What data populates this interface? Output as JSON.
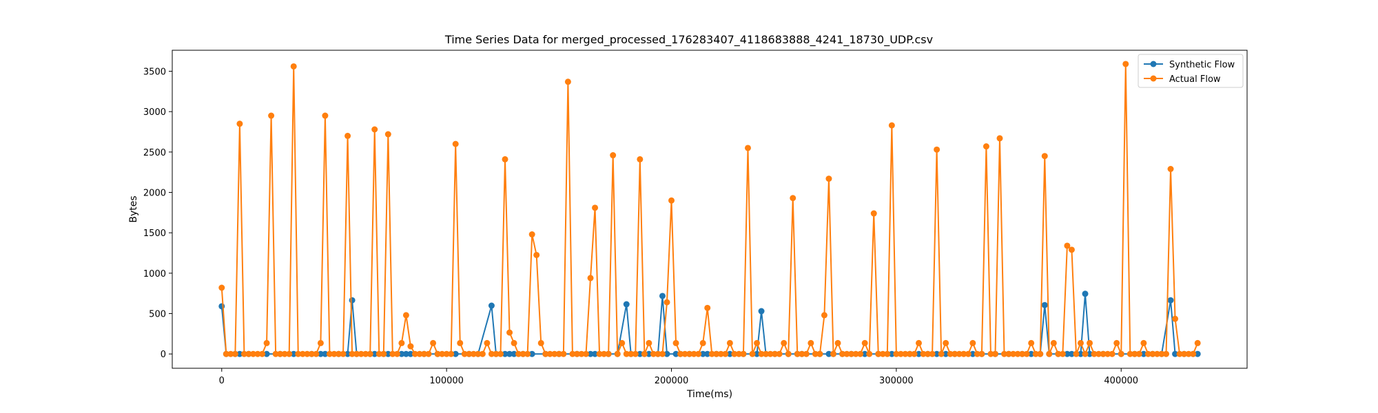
{
  "chart_data": {
    "type": "line",
    "title": "Time Series Data for merged_processed_176283407_4118683888_4241_18730_UDP.csv",
    "xlabel": "Time(ms)",
    "ylabel": "Bytes",
    "xlim": [
      -22000,
      456000
    ],
    "ylim": [
      -177,
      3760
    ],
    "xticks": [
      0,
      100000,
      200000,
      300000,
      400000
    ],
    "yticks": [
      0,
      500,
      1000,
      1500,
      2000,
      2500,
      3000,
      3500
    ],
    "grid": false,
    "legend_position": "top-right",
    "series": [
      {
        "name": "Synthetic Flow",
        "color": "#1f77b4",
        "marker": "circle",
        "points": [
          [
            0,
            590
          ],
          [
            2000,
            0
          ],
          [
            6000,
            0
          ],
          [
            8000,
            0
          ],
          [
            12000,
            0
          ],
          [
            20000,
            0
          ],
          [
            26000,
            0
          ],
          [
            32000,
            0
          ],
          [
            40000,
            0
          ],
          [
            44000,
            0
          ],
          [
            46000,
            0
          ],
          [
            52000,
            0
          ],
          [
            56000,
            0
          ],
          [
            58000,
            665
          ],
          [
            60000,
            0
          ],
          [
            66000,
            0
          ],
          [
            68000,
            0
          ],
          [
            72000,
            0
          ],
          [
            74000,
            0
          ],
          [
            80000,
            0
          ],
          [
            82000,
            0
          ],
          [
            84000,
            0
          ],
          [
            90000,
            0
          ],
          [
            96000,
            0
          ],
          [
            104000,
            0
          ],
          [
            110000,
            0
          ],
          [
            114000,
            0
          ],
          [
            120000,
            598
          ],
          [
            122000,
            0
          ],
          [
            126000,
            0
          ],
          [
            128000,
            0
          ],
          [
            130000,
            0
          ],
          [
            134000,
            0
          ],
          [
            138000,
            0
          ],
          [
            144000,
            0
          ],
          [
            150000,
            0
          ],
          [
            158000,
            0
          ],
          [
            164000,
            0
          ],
          [
            166000,
            0
          ],
          [
            172000,
            0
          ],
          [
            176000,
            0
          ],
          [
            180000,
            615
          ],
          [
            182000,
            0
          ],
          [
            186000,
            0
          ],
          [
            188000,
            0
          ],
          [
            190000,
            0
          ],
          [
            194000,
            0
          ],
          [
            196000,
            718
          ],
          [
            198000,
            0
          ],
          [
            202000,
            0
          ],
          [
            204000,
            0
          ],
          [
            208000,
            0
          ],
          [
            214000,
            0
          ],
          [
            216000,
            0
          ],
          [
            220000,
            0
          ],
          [
            226000,
            0
          ],
          [
            232000,
            0
          ],
          [
            238000,
            0
          ],
          [
            240000,
            530
          ],
          [
            242000,
            0
          ],
          [
            246000,
            0
          ],
          [
            252000,
            0
          ],
          [
            256000,
            0
          ],
          [
            258000,
            0
          ],
          [
            266000,
            0
          ],
          [
            270000,
            0
          ],
          [
            272000,
            0
          ],
          [
            276000,
            0
          ],
          [
            280000,
            0
          ],
          [
            286000,
            0
          ],
          [
            292000,
            0
          ],
          [
            298000,
            0
          ],
          [
            306000,
            0
          ],
          [
            310000,
            0
          ],
          [
            314000,
            0
          ],
          [
            318000,
            0
          ],
          [
            322000,
            0
          ],
          [
            326000,
            0
          ],
          [
            334000,
            0
          ],
          [
            338000,
            0
          ],
          [
            344000,
            0
          ],
          [
            350000,
            0
          ],
          [
            356000,
            0
          ],
          [
            360000,
            0
          ],
          [
            364000,
            0
          ],
          [
            366000,
            605
          ],
          [
            368000,
            0
          ],
          [
            372000,
            0
          ],
          [
            376000,
            0
          ],
          [
            378000,
            0
          ],
          [
            382000,
            0
          ],
          [
            384000,
            745
          ],
          [
            386000,
            0
          ],
          [
            392000,
            0
          ],
          [
            400000,
            0
          ],
          [
            406000,
            0
          ],
          [
            410000,
            0
          ],
          [
            414000,
            0
          ],
          [
            418000,
            0
          ],
          [
            422000,
            665
          ],
          [
            424000,
            0
          ],
          [
            428000,
            0
          ],
          [
            432000,
            0
          ],
          [
            434000,
            0
          ]
        ]
      },
      {
        "name": "Actual Flow",
        "color": "#ff7f0e",
        "marker": "circle",
        "points": [
          [
            0,
            820
          ],
          [
            2000,
            0
          ],
          [
            4000,
            0
          ],
          [
            6000,
            0
          ],
          [
            8000,
            2850
          ],
          [
            10000,
            0
          ],
          [
            12000,
            0
          ],
          [
            14000,
            0
          ],
          [
            16000,
            0
          ],
          [
            18000,
            0
          ],
          [
            20000,
            135
          ],
          [
            22000,
            2950
          ],
          [
            24000,
            0
          ],
          [
            26000,
            0
          ],
          [
            28000,
            0
          ],
          [
            30000,
            0
          ],
          [
            32000,
            3560
          ],
          [
            34000,
            0
          ],
          [
            36000,
            0
          ],
          [
            38000,
            0
          ],
          [
            40000,
            0
          ],
          [
            42000,
            0
          ],
          [
            44000,
            135
          ],
          [
            46000,
            2950
          ],
          [
            48000,
            0
          ],
          [
            50000,
            0
          ],
          [
            52000,
            0
          ],
          [
            54000,
            0
          ],
          [
            56000,
            2700
          ],
          [
            58000,
            0
          ],
          [
            60000,
            0
          ],
          [
            62000,
            0
          ],
          [
            64000,
            0
          ],
          [
            66000,
            0
          ],
          [
            68000,
            2780
          ],
          [
            70000,
            0
          ],
          [
            72000,
            0
          ],
          [
            74000,
            2720
          ],
          [
            76000,
            0
          ],
          [
            78000,
            0
          ],
          [
            80000,
            135
          ],
          [
            82000,
            480
          ],
          [
            84000,
            95
          ],
          [
            86000,
            0
          ],
          [
            88000,
            0
          ],
          [
            90000,
            0
          ],
          [
            92000,
            0
          ],
          [
            94000,
            135
          ],
          [
            96000,
            0
          ],
          [
            98000,
            0
          ],
          [
            100000,
            0
          ],
          [
            102000,
            0
          ],
          [
            104000,
            2600
          ],
          [
            106000,
            135
          ],
          [
            108000,
            0
          ],
          [
            110000,
            0
          ],
          [
            112000,
            0
          ],
          [
            114000,
            0
          ],
          [
            116000,
            0
          ],
          [
            118000,
            135
          ],
          [
            120000,
            0
          ],
          [
            122000,
            0
          ],
          [
            124000,
            0
          ],
          [
            126000,
            2410
          ],
          [
            128000,
            265
          ],
          [
            130000,
            135
          ],
          [
            132000,
            0
          ],
          [
            134000,
            0
          ],
          [
            136000,
            0
          ],
          [
            138000,
            1480
          ],
          [
            140000,
            1225
          ],
          [
            142000,
            135
          ],
          [
            144000,
            0
          ],
          [
            146000,
            0
          ],
          [
            148000,
            0
          ],
          [
            150000,
            0
          ],
          [
            152000,
            0
          ],
          [
            154000,
            3370
          ],
          [
            156000,
            0
          ],
          [
            158000,
            0
          ],
          [
            160000,
            0
          ],
          [
            162000,
            0
          ],
          [
            164000,
            940
          ],
          [
            166000,
            1810
          ],
          [
            168000,
            0
          ],
          [
            170000,
            0
          ],
          [
            172000,
            0
          ],
          [
            174000,
            2460
          ],
          [
            176000,
            0
          ],
          [
            178000,
            135
          ],
          [
            180000,
            0
          ],
          [
            182000,
            0
          ],
          [
            184000,
            0
          ],
          [
            186000,
            2410
          ],
          [
            188000,
            0
          ],
          [
            190000,
            135
          ],
          [
            192000,
            0
          ],
          [
            194000,
            0
          ],
          [
            196000,
            0
          ],
          [
            198000,
            640
          ],
          [
            200000,
            1900
          ],
          [
            202000,
            135
          ],
          [
            204000,
            0
          ],
          [
            206000,
            0
          ],
          [
            208000,
            0
          ],
          [
            210000,
            0
          ],
          [
            212000,
            0
          ],
          [
            214000,
            135
          ],
          [
            216000,
            570
          ],
          [
            218000,
            0
          ],
          [
            220000,
            0
          ],
          [
            222000,
            0
          ],
          [
            224000,
            0
          ],
          [
            226000,
            135
          ],
          [
            228000,
            0
          ],
          [
            230000,
            0
          ],
          [
            232000,
            0
          ],
          [
            234000,
            2550
          ],
          [
            236000,
            0
          ],
          [
            238000,
            135
          ],
          [
            240000,
            0
          ],
          [
            242000,
            0
          ],
          [
            244000,
            0
          ],
          [
            246000,
            0
          ],
          [
            248000,
            0
          ],
          [
            250000,
            135
          ],
          [
            252000,
            0
          ],
          [
            254000,
            1930
          ],
          [
            256000,
            0
          ],
          [
            258000,
            0
          ],
          [
            260000,
            0
          ],
          [
            262000,
            135
          ],
          [
            264000,
            0
          ],
          [
            266000,
            0
          ],
          [
            268000,
            480
          ],
          [
            270000,
            2170
          ],
          [
            272000,
            0
          ],
          [
            274000,
            135
          ],
          [
            276000,
            0
          ],
          [
            278000,
            0
          ],
          [
            280000,
            0
          ],
          [
            282000,
            0
          ],
          [
            284000,
            0
          ],
          [
            286000,
            135
          ],
          [
            288000,
            0
          ],
          [
            290000,
            1740
          ],
          [
            292000,
            0
          ],
          [
            294000,
            0
          ],
          [
            296000,
            0
          ],
          [
            298000,
            2830
          ],
          [
            300000,
            0
          ],
          [
            302000,
            0
          ],
          [
            304000,
            0
          ],
          [
            306000,
            0
          ],
          [
            308000,
            0
          ],
          [
            310000,
            135
          ],
          [
            312000,
            0
          ],
          [
            314000,
            0
          ],
          [
            316000,
            0
          ],
          [
            318000,
            2530
          ],
          [
            320000,
            0
          ],
          [
            322000,
            135
          ],
          [
            324000,
            0
          ],
          [
            326000,
            0
          ],
          [
            328000,
            0
          ],
          [
            330000,
            0
          ],
          [
            332000,
            0
          ],
          [
            334000,
            135
          ],
          [
            336000,
            0
          ],
          [
            338000,
            0
          ],
          [
            340000,
            2570
          ],
          [
            342000,
            0
          ],
          [
            344000,
            0
          ],
          [
            346000,
            2670
          ],
          [
            348000,
            0
          ],
          [
            350000,
            0
          ],
          [
            352000,
            0
          ],
          [
            354000,
            0
          ],
          [
            356000,
            0
          ],
          [
            358000,
            0
          ],
          [
            360000,
            135
          ],
          [
            362000,
            0
          ],
          [
            364000,
            0
          ],
          [
            366000,
            2450
          ],
          [
            368000,
            0
          ],
          [
            370000,
            135
          ],
          [
            372000,
            0
          ],
          [
            374000,
            0
          ],
          [
            376000,
            1340
          ],
          [
            378000,
            1290
          ],
          [
            380000,
            0
          ],
          [
            382000,
            135
          ],
          [
            384000,
            0
          ],
          [
            386000,
            135
          ],
          [
            388000,
            0
          ],
          [
            390000,
            0
          ],
          [
            392000,
            0
          ],
          [
            394000,
            0
          ],
          [
            396000,
            0
          ],
          [
            398000,
            135
          ],
          [
            400000,
            0
          ],
          [
            402000,
            3590
          ],
          [
            404000,
            0
          ],
          [
            406000,
            0
          ],
          [
            408000,
            0
          ],
          [
            410000,
            135
          ],
          [
            412000,
            0
          ],
          [
            414000,
            0
          ],
          [
            416000,
            0
          ],
          [
            418000,
            0
          ],
          [
            420000,
            0
          ],
          [
            422000,
            2290
          ],
          [
            424000,
            435
          ],
          [
            426000,
            0
          ],
          [
            428000,
            0
          ],
          [
            430000,
            0
          ],
          [
            432000,
            0
          ],
          [
            434000,
            135
          ]
        ]
      }
    ]
  }
}
